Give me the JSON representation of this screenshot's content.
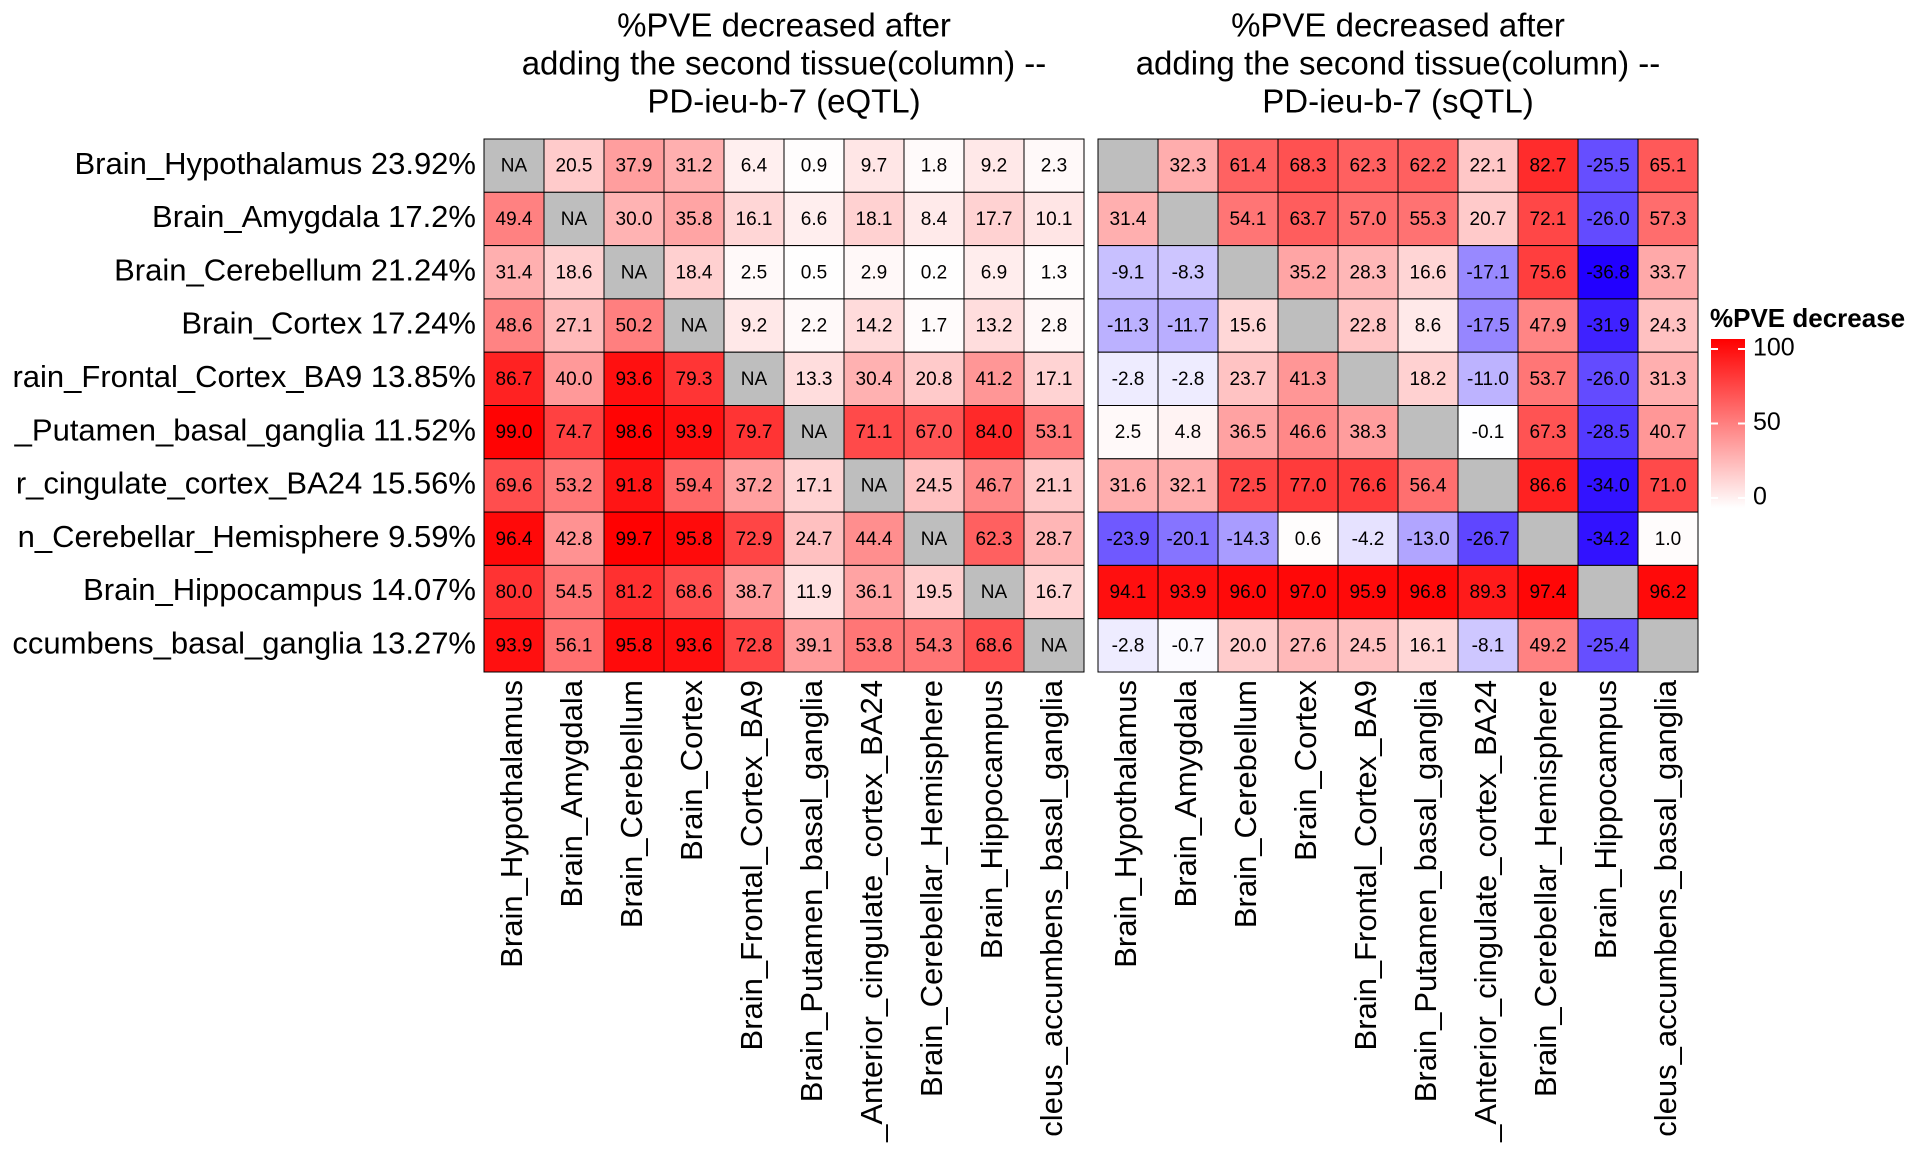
{
  "chart_data": [
    {
      "type": "heatmap",
      "title": [
        "%PVE decreased after",
        "adding the second tissue(column) --",
        "PD-ieu-b-7 (eQTL)"
      ],
      "rows": [
        "Brain_Hypothalamus 23.92%",
        "Brain_Amygdala 17.2%",
        "Brain_Cerebellum 21.24%",
        "Brain_Cortex 17.24%",
        "rain_Frontal_Cortex_BA9 13.85%",
        "_Putamen_basal_ganglia 11.52%",
        "r_cingulate_cortex_BA24 15.56%",
        "n_Cerebellar_Hemisphere 9.59%",
        "Brain_Hippocampus 14.07%",
        "ccumbens_basal_ganglia 13.27%"
      ],
      "columns": [
        "Brain_Hypothalamus",
        "Brain_Amygdala",
        "Brain_Cerebellum",
        "Brain_Cortex",
        "Brain_Frontal_Cortex_BA9",
        "Brain_Putamen_basal_ganglia",
        "_Anterior_cingulate_cortex_BA24",
        "Brain_Cerebellar_Hemisphere",
        "Brain_Hippocampus",
        "cleus_accumbens_basal_ganglia"
      ],
      "values": [
        [
          null,
          20.5,
          37.9,
          31.2,
          6.4,
          0.9,
          9.7,
          1.8,
          9.2,
          2.3
        ],
        [
          49.4,
          null,
          30.0,
          35.8,
          16.1,
          6.6,
          18.1,
          8.4,
          17.7,
          10.1
        ],
        [
          31.4,
          18.6,
          null,
          18.4,
          2.5,
          0.5,
          2.9,
          0.2,
          6.9,
          1.3
        ],
        [
          48.6,
          27.1,
          50.2,
          null,
          9.2,
          2.2,
          14.2,
          1.7,
          13.2,
          2.8
        ],
        [
          86.7,
          40.0,
          93.6,
          79.3,
          null,
          13.3,
          30.4,
          20.8,
          41.2,
          17.1
        ],
        [
          99.0,
          74.7,
          98.6,
          93.9,
          79.7,
          null,
          71.1,
          67.0,
          84.0,
          53.1
        ],
        [
          69.6,
          53.2,
          91.8,
          59.4,
          37.2,
          17.1,
          null,
          24.5,
          46.7,
          21.1
        ],
        [
          96.4,
          42.8,
          99.7,
          95.8,
          72.9,
          24.7,
          44.4,
          null,
          62.3,
          28.7
        ],
        [
          80.0,
          54.5,
          81.2,
          68.6,
          38.7,
          11.9,
          36.1,
          19.5,
          null,
          16.7
        ],
        [
          93.9,
          56.1,
          95.8,
          93.6,
          72.8,
          39.1,
          53.8,
          54.3,
          68.6,
          null
        ]
      ],
      "value_labels": [
        [
          "NA",
          "20.5",
          "37.9",
          "31.2",
          "6.4",
          "0.9",
          "9.7",
          "1.8",
          "9.2",
          "2.3"
        ],
        [
          "49.4",
          "NA",
          "30.0",
          "35.8",
          "16.1",
          "6.6",
          "18.1",
          "8.4",
          "17.7",
          "10.1"
        ],
        [
          "31.4",
          "18.6",
          "NA",
          "18.4",
          "2.5",
          "0.5",
          "2.9",
          "0.2",
          "6.9",
          "1.3"
        ],
        [
          "48.6",
          "27.1",
          "50.2",
          "NA",
          "9.2",
          "2.2",
          "14.2",
          "1.7",
          "13.2",
          "2.8"
        ],
        [
          "86.7",
          "40.0",
          "93.6",
          "79.3",
          "NA",
          "13.3",
          "30.4",
          "20.8",
          "41.2",
          "17.1"
        ],
        [
          "99.0",
          "74.7",
          "98.6",
          "93.9",
          "79.7",
          "NA",
          "71.1",
          "67.0",
          "84.0",
          "53.1"
        ],
        [
          "69.6",
          "53.2",
          "91.8",
          "59.4",
          "37.2",
          "17.1",
          "NA",
          "24.5",
          "46.7",
          "21.1"
        ],
        [
          "96.4",
          "42.8",
          "99.7",
          "95.8",
          "72.9",
          "24.7",
          "44.4",
          "NA",
          "62.3",
          "28.7"
        ],
        [
          "80.0",
          "54.5",
          "81.2",
          "68.6",
          "38.7",
          "11.9",
          "36.1",
          "19.5",
          "NA",
          "16.7"
        ],
        [
          "93.9",
          "56.1",
          "95.8",
          "93.6",
          "72.8",
          "39.1",
          "53.8",
          "54.3",
          "68.6",
          "NA"
        ]
      ]
    },
    {
      "type": "heatmap",
      "title": [
        "%PVE decreased after",
        "adding the second tissue(column) --",
        "PD-ieu-b-7 (sQTL)"
      ],
      "columns": [
        "Brain_Hypothalamus",
        "Brain_Amygdala",
        "Brain_Cerebellum",
        "Brain_Cortex",
        "Brain_Frontal_Cortex_BA9",
        "Brain_Putamen_basal_ganglia",
        "_Anterior_cingulate_cortex_BA24",
        "Brain_Cerebellar_Hemisphere",
        "Brain_Hippocampus",
        "cleus_accumbens_basal_ganglia"
      ],
      "values": [
        [
          null,
          32.3,
          61.4,
          68.3,
          62.3,
          62.2,
          22.1,
          82.7,
          -25.5,
          65.1
        ],
        [
          31.4,
          null,
          54.1,
          63.7,
          57.0,
          55.3,
          20.7,
          72.1,
          -26.0,
          57.3
        ],
        [
          -9.1,
          -8.3,
          null,
          35.2,
          28.3,
          16.6,
          -17.1,
          75.6,
          -36.8,
          33.7
        ],
        [
          -11.3,
          -11.7,
          15.6,
          null,
          22.8,
          8.6,
          -17.5,
          47.9,
          -31.9,
          24.3
        ],
        [
          -2.8,
          -2.8,
          23.7,
          41.3,
          null,
          18.2,
          -11.0,
          53.7,
          -26.0,
          31.3
        ],
        [
          2.5,
          4.8,
          36.5,
          46.6,
          38.3,
          null,
          -0.1,
          67.3,
          -28.5,
          40.7
        ],
        [
          31.6,
          32.1,
          72.5,
          77.0,
          76.6,
          56.4,
          null,
          86.6,
          -34.0,
          71.0
        ],
        [
          -23.9,
          -20.1,
          -14.3,
          0.6,
          -4.2,
          -13.0,
          -26.7,
          null,
          -34.2,
          1.0
        ],
        [
          94.1,
          93.9,
          96.0,
          97.0,
          95.9,
          96.8,
          89.3,
          97.4,
          null,
          96.2
        ],
        [
          -2.8,
          -0.7,
          20.0,
          27.6,
          24.5,
          16.1,
          -8.1,
          49.2,
          -25.4,
          null
        ]
      ],
      "value_labels": [
        [
          null,
          "32.3",
          "61.4",
          "68.3",
          "62.3",
          "62.2",
          "22.1",
          "82.7",
          "-25.5",
          "65.1"
        ],
        [
          "31.4",
          null,
          "54.1",
          "63.7",
          "57.0",
          "55.3",
          "20.7",
          "72.1",
          "-26.0",
          "57.3"
        ],
        [
          "-9.1",
          "-8.3",
          null,
          "35.2",
          "28.3",
          "16.6",
          "-17.1",
          "75.6",
          "-36.8",
          "33.7"
        ],
        [
          "-11.3",
          "-11.7",
          "15.6",
          null,
          "22.8",
          "8.6",
          "-17.5",
          "47.9",
          "-31.9",
          "24.3"
        ],
        [
          "-2.8",
          "-2.8",
          "23.7",
          "41.3",
          null,
          "18.2",
          "-11.0",
          "53.7",
          "-26.0",
          "31.3"
        ],
        [
          "2.5",
          "4.8",
          "36.5",
          "46.6",
          "38.3",
          null,
          "-0.1",
          "67.3",
          "-28.5",
          "40.7"
        ],
        [
          "31.6",
          "32.1",
          "72.5",
          "77.0",
          "76.6",
          "56.4",
          null,
          "86.6",
          "-34.0",
          "71.0"
        ],
        [
          "-23.9",
          "-20.1",
          "-14.3",
          "0.6",
          "-4.2",
          "-13.0",
          "-26.7",
          null,
          "-34.2",
          "1.0"
        ],
        [
          "94.1",
          "93.9",
          "96.0",
          "97.0",
          "95.9",
          "96.8",
          "89.3",
          "97.4",
          null,
          "96.2"
        ],
        [
          "-2.8",
          "-0.7",
          "20.0",
          "27.6",
          "24.5",
          "16.1",
          "-8.1",
          "49.2",
          "-25.4",
          null
        ]
      ]
    }
  ],
  "colorbar": {
    "title": "%PVE decrease",
    "lim": [
      0,
      100
    ],
    "ticks": [
      0,
      50,
      100
    ],
    "colors": {
      "low": "#2200ff",
      "mid": "#ffffff",
      "high": "#ff0000",
      "na": "#bebebe"
    }
  }
}
